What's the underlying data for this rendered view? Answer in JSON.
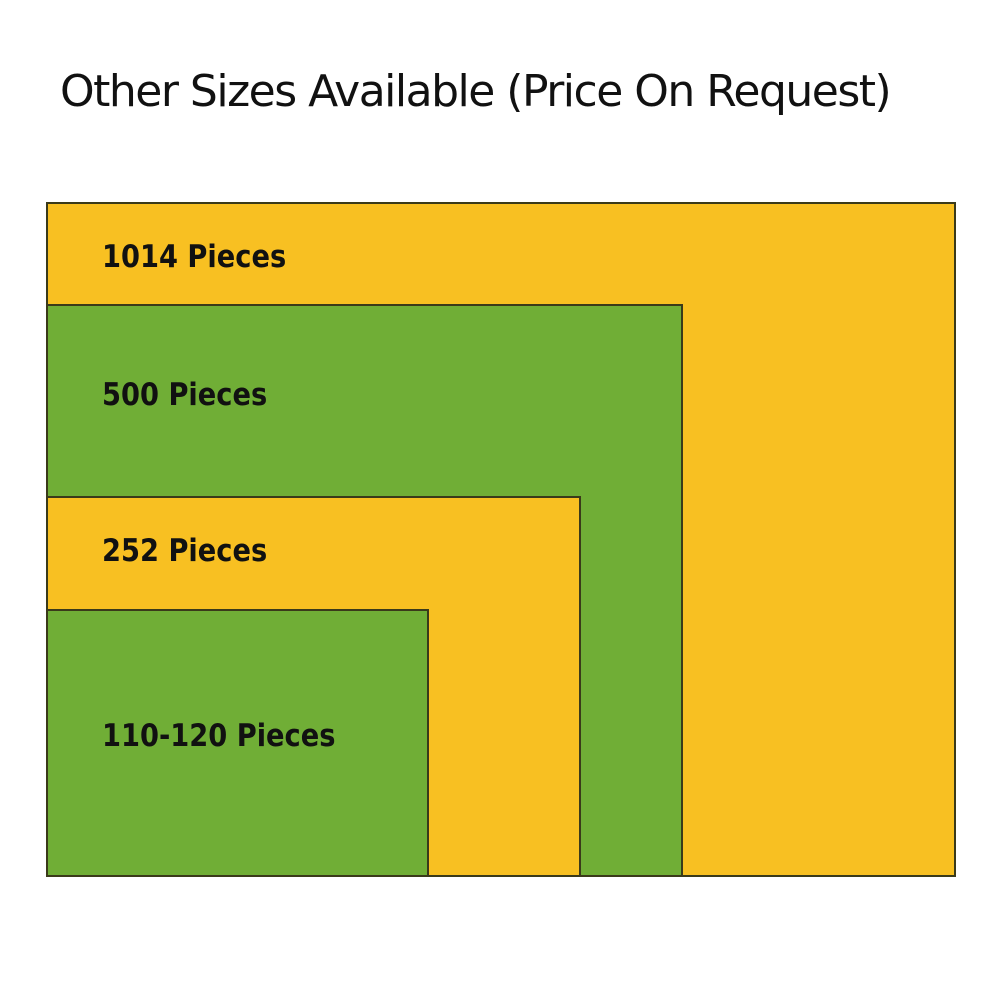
{
  "title": "Other Sizes Available (Price On Request)",
  "sizes": [
    {
      "label": "1014 Pieces",
      "color": "#f8c022"
    },
    {
      "label": "500 Pieces",
      "color": "#70ae36"
    },
    {
      "label": "252 Pieces",
      "color": "#f8c022"
    },
    {
      "label": "110-120 Pieces",
      "color": "#70ae36"
    }
  ]
}
